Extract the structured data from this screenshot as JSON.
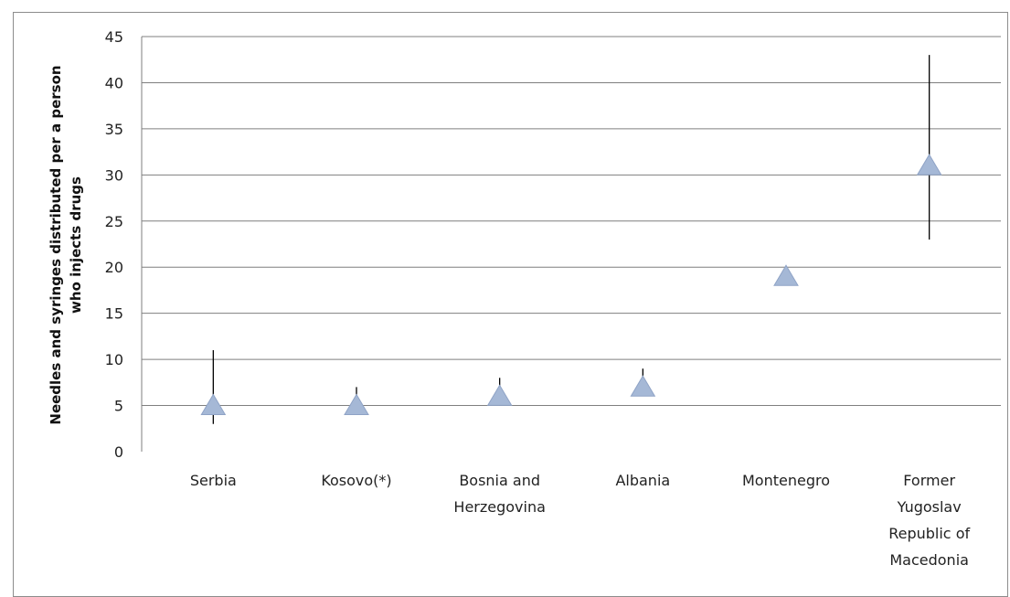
{
  "chart_data": {
    "type": "scatter",
    "marker": "triangle",
    "marker_color": "#a5b8d6",
    "error_bar_color": "#000000",
    "gridlines": true,
    "ylim": [
      0,
      45
    ],
    "yticks": [
      0,
      5,
      10,
      15,
      20,
      25,
      30,
      35,
      40,
      45
    ],
    "ylabel_lines": [
      "Needles and syringes distributed per a person",
      "who injects drugs"
    ],
    "xlabel": "",
    "title": "",
    "categories": [
      {
        "lines": [
          "Serbia"
        ]
      },
      {
        "lines": [
          "Kosovo(*)"
        ]
      },
      {
        "lines": [
          "Bosnia and",
          "Herzegovina"
        ]
      },
      {
        "lines": [
          "Albania"
        ]
      },
      {
        "lines": [
          "Montenegro"
        ]
      },
      {
        "lines": [
          "Former",
          "Yugoslav",
          "Republic of",
          "Macedonia"
        ]
      }
    ],
    "values": [
      5,
      5,
      6,
      7,
      19,
      31
    ],
    "error_low": [
      3,
      4,
      5,
      6,
      18,
      23
    ],
    "error_high": [
      11,
      7,
      8,
      9,
      19,
      43
    ]
  }
}
